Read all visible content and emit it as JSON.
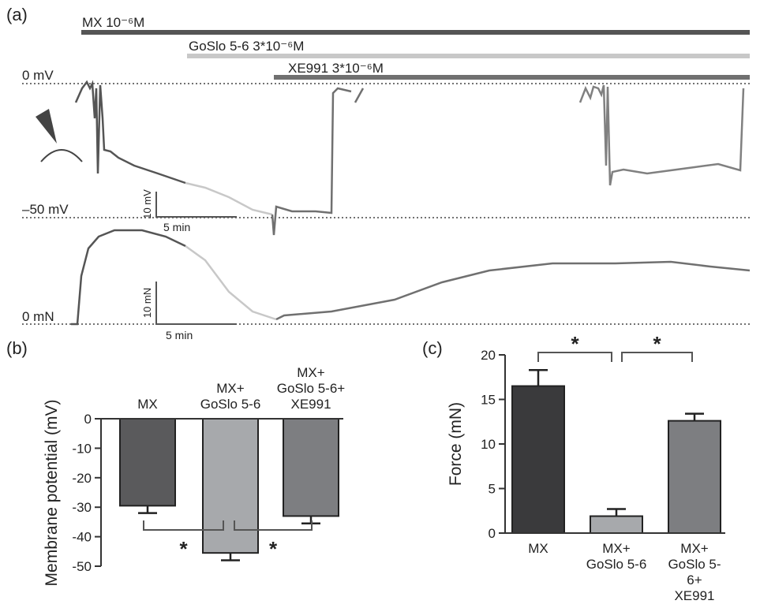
{
  "panel_a": {
    "label": "(a)",
    "treatments": [
      "MX 10⁻⁶M",
      "GoSlo 5-6 3*10⁻⁶M",
      "XE991 3*10⁻⁶M"
    ],
    "voltage_labels": [
      "0 mV",
      "–50 mV"
    ],
    "voltage_scale": [
      "10 mV",
      "5 min"
    ],
    "force_labels": [
      "0 mN"
    ],
    "force_scale": [
      "10 mN",
      "5 min"
    ]
  },
  "chart_data": [
    {
      "type": "bar",
      "panel_label": "(b)",
      "y_label": "Membrane potential (mV)",
      "categories": [
        "MX",
        "MX+\nGoSlo 5-6",
        "MX+\nGoSlo 5-6+\nXE991"
      ],
      "values": [
        -29.5,
        -45.5,
        -33
      ],
      "errors": [
        2.5,
        2.5,
        2.5
      ],
      "colors": [
        "#5a5a5c",
        "#a7a9ac",
        "#7d7e81"
      ],
      "ylim": [
        -50,
        0
      ],
      "yticks": [
        0,
        -10,
        -20,
        -30,
        -40,
        -50
      ],
      "annotations": [
        "*",
        "*"
      ]
    },
    {
      "type": "bar",
      "panel_label": "(c)",
      "y_label": "Force (mN)",
      "categories": [
        "MX",
        "MX+\nGoSlo 5-6",
        "MX+\nGoSlo 5-6+\nXE991"
      ],
      "values": [
        16.5,
        1.9,
        12.6
      ],
      "errors": [
        1.8,
        0.8,
        0.8
      ],
      "colors": [
        "#3a3a3c",
        "#a7a9ac",
        "#7d7e81"
      ],
      "ylim": [
        0,
        20
      ],
      "yticks": [
        0,
        5,
        10,
        15,
        20
      ],
      "annotations": [
        "*",
        "*"
      ]
    }
  ]
}
